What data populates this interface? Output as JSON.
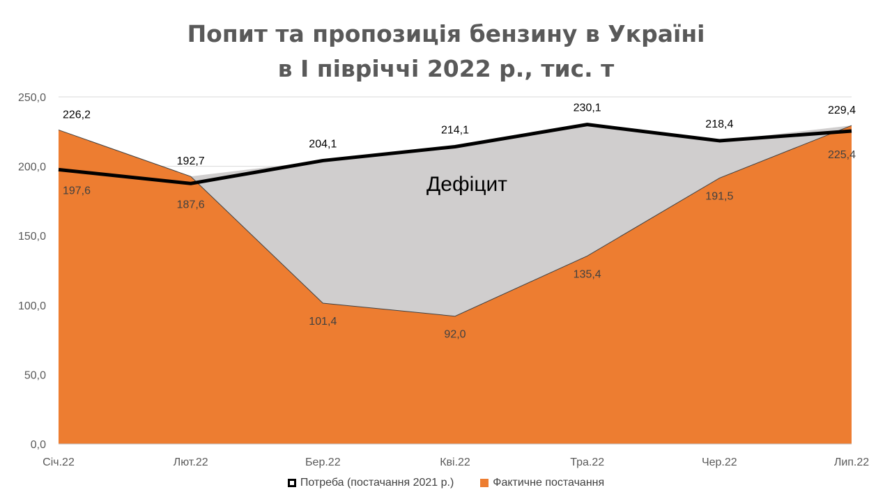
{
  "chart_data": {
    "type": "area",
    "title": [
      "Попит та пропозиція бензину в Україні",
      "в І півріччі 2022 р., тис. т"
    ],
    "categories": [
      "Січ.22",
      "Лют.22",
      "Бер.22",
      "Кві.22",
      "Тра.22",
      "Чер.22",
      "Лип.22"
    ],
    "ylim": [
      0,
      250
    ],
    "yticks": [
      "0,0",
      "50,0",
      "100,0",
      "150,0",
      "200,0",
      "250,0"
    ],
    "grid": true,
    "legend_position": "bottom",
    "series": [
      {
        "name": "Потреба (постачання 2021 р.)",
        "type": "line",
        "color": "#000000",
        "values": [
          197.6,
          187.6,
          204.1,
          214.1,
          230.1,
          218.4,
          225.4
        ],
        "labels": [
          "197,6",
          "187,6",
          "204,1",
          "214,1",
          "230,1",
          "218,4",
          "225,4"
        ]
      },
      {
        "name": "Фактичне постачання",
        "type": "area",
        "color": "#ED7D31",
        "values": [
          226.2,
          192.7,
          101.4,
          92.0,
          135.4,
          191.5,
          229.4
        ],
        "labels": [
          "226,2",
          "192,7",
          "101,4",
          "92,0",
          "135,4",
          "191,5",
          "229,4"
        ]
      }
    ],
    "annotation": "Дефіцит",
    "deficit_color": "#D0CECE"
  }
}
